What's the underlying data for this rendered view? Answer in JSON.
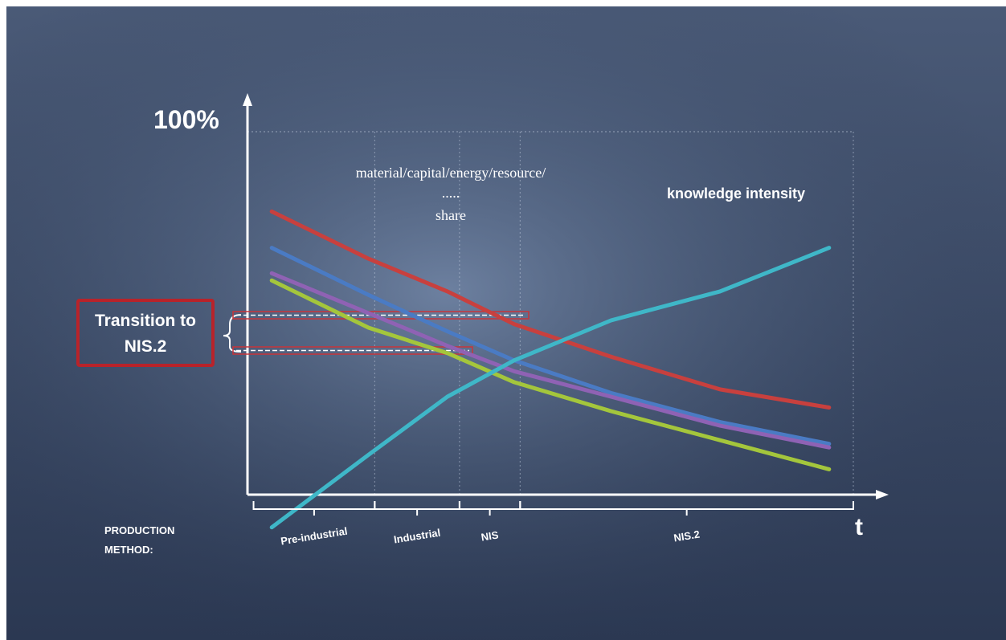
{
  "chart_data": {
    "type": "line",
    "y_top_label": "100%",
    "x_axis_label": "t",
    "ylim": [
      0,
      100
    ],
    "xlim": [
      0,
      100
    ],
    "grid": false,
    "legend": "none",
    "annotations": {
      "share_line1": "material/capital/energy/resource/",
      "share_line2": ".....",
      "share_line3": "share",
      "knowledge": "knowledge intensity",
      "transition_line1": "Transition to",
      "transition_line2": "NIS.2"
    },
    "production_method_line1": "PRODUCTION",
    "production_method_line2": "METHOD:",
    "phases": [
      {
        "label": "Pre-industrial",
        "start": 1,
        "end": 21
      },
      {
        "label": "Industrial",
        "start": 21,
        "end": 35
      },
      {
        "label": "NIS",
        "start": 35,
        "end": 45
      },
      {
        "label": "NIS.2",
        "start": 45,
        "end": 100
      }
    ],
    "series": [
      {
        "color": "#c8403e",
        "points": [
          [
            4,
            78
          ],
          [
            20,
            65
          ],
          [
            33,
            56
          ],
          [
            44,
            47
          ],
          [
            60,
            38
          ],
          [
            78,
            29
          ],
          [
            96,
            24
          ]
        ]
      },
      {
        "color": "#4a7bc4",
        "points": [
          [
            4,
            68
          ],
          [
            20,
            55
          ],
          [
            33,
            45
          ],
          [
            44,
            37
          ],
          [
            60,
            28
          ],
          [
            78,
            20
          ],
          [
            96,
            14
          ]
        ]
      },
      {
        "color": "#8f62b4",
        "points": [
          [
            4,
            61
          ],
          [
            20,
            50
          ],
          [
            33,
            41
          ],
          [
            44,
            34
          ],
          [
            60,
            27
          ],
          [
            78,
            19
          ],
          [
            96,
            13
          ]
        ]
      },
      {
        "color": "#a4c63c",
        "points": [
          [
            4,
            59
          ],
          [
            20,
            46
          ],
          [
            33,
            39
          ],
          [
            44,
            31
          ],
          [
            60,
            23
          ],
          [
            78,
            15
          ],
          [
            96,
            7
          ]
        ]
      },
      {
        "color": "#3fb7c8",
        "points": [
          [
            4,
            -9
          ],
          [
            20,
            11
          ],
          [
            33,
            27
          ],
          [
            44,
            37
          ],
          [
            60,
            48
          ],
          [
            78,
            56
          ],
          [
            96,
            68
          ]
        ]
      }
    ]
  }
}
